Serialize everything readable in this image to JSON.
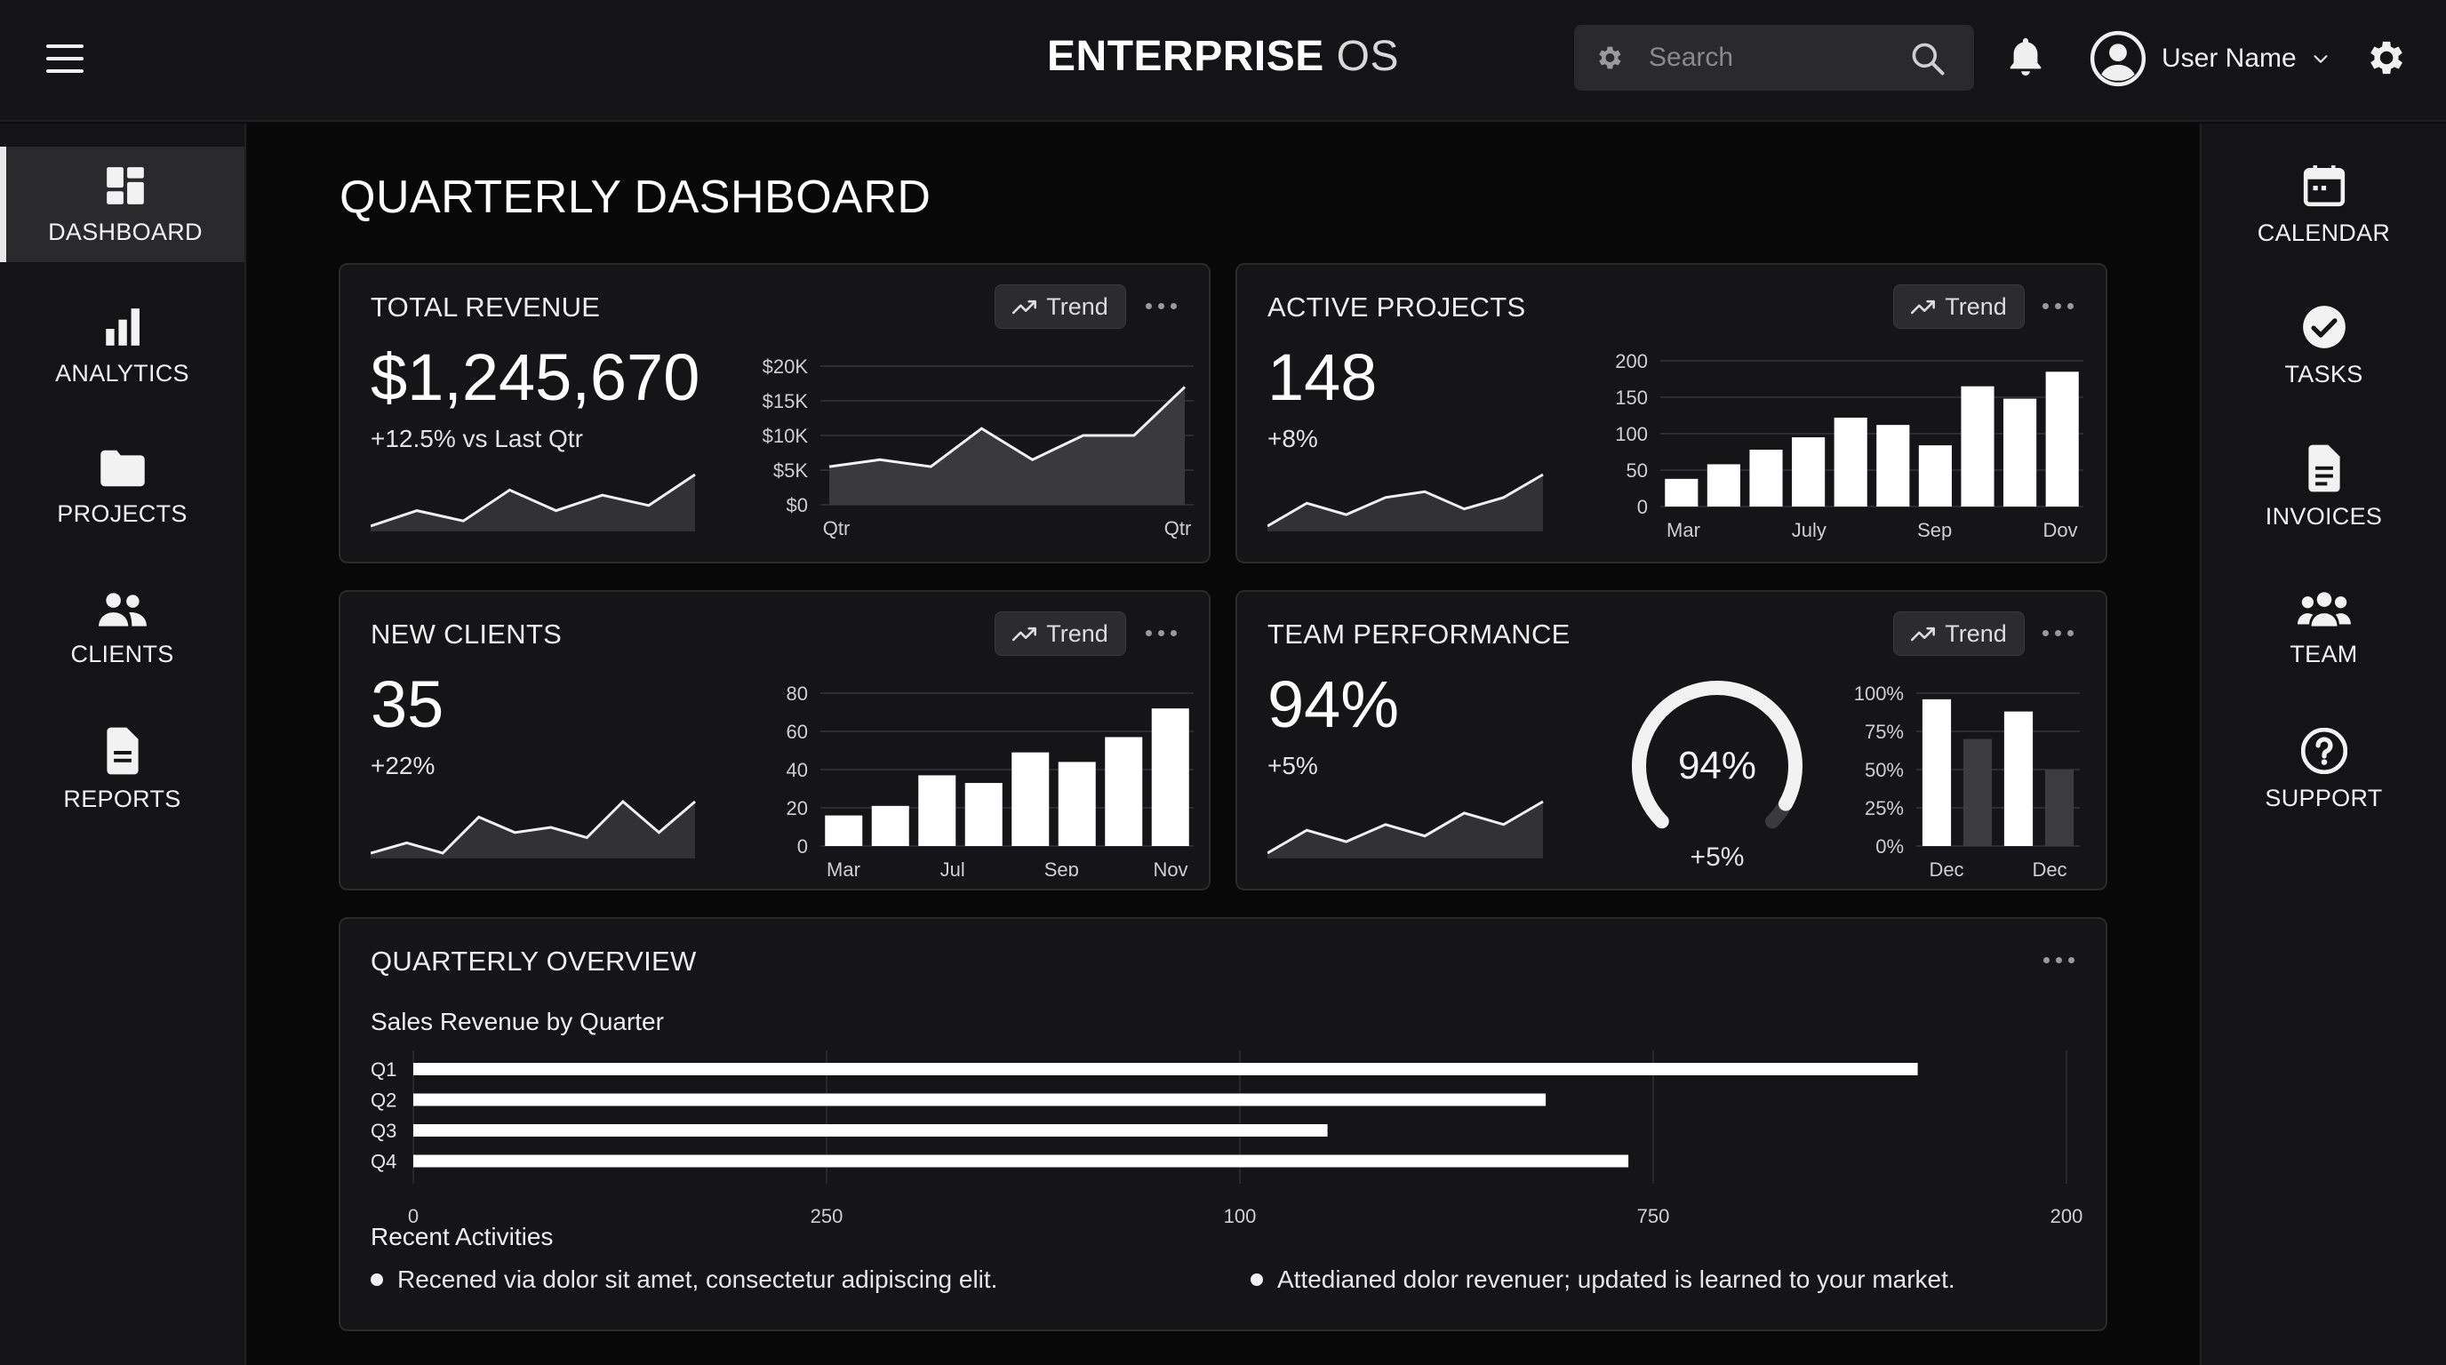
{
  "header": {
    "title_bold": "ENTERPRISE",
    "title_light": "OS",
    "search_placeholder": "Search",
    "user_name": "User Name"
  },
  "sidebar_left": [
    {
      "label": "DASHBOARD",
      "icon": "dashboard-icon",
      "active": true
    },
    {
      "label": "ANALYTICS",
      "icon": "bar-chart-icon"
    },
    {
      "label": "PROJECTS",
      "icon": "folder-icon"
    },
    {
      "label": "CLIENTS",
      "icon": "people-icon"
    },
    {
      "label": "REPORTS",
      "icon": "document-icon"
    }
  ],
  "sidebar_right": [
    {
      "label": "CALENDAR",
      "icon": "calendar-icon"
    },
    {
      "label": "TASKS",
      "icon": "check-circle-icon"
    },
    {
      "label": "INVOICES",
      "icon": "invoice-icon"
    },
    {
      "label": "TEAM",
      "icon": "team-icon"
    },
    {
      "label": "SUPPORT",
      "icon": "help-icon"
    }
  ],
  "page_title": "QUARTERLY DASHBOARD",
  "trend_label": "Trend",
  "cards": {
    "revenue": {
      "title": "TOTAL REVENUE",
      "value": "$1,245,670",
      "delta": "+12.5% vs Last Qtr",
      "sparkline": [
        2,
        5,
        3,
        9,
        5,
        8,
        6,
        12
      ],
      "chart": {
        "type": "area",
        "y_ticks": [
          "$20K",
          "$15K",
          "$10K",
          "$5K",
          "$0"
        ],
        "ylim": [
          0,
          20000
        ],
        "x_ticks": [
          "Qtr",
          "Qtr"
        ],
        "values": [
          5500,
          6500,
          5500,
          11000,
          6500,
          10000,
          10000,
          17000
        ]
      }
    },
    "projects": {
      "title": "ACTIVE PROJECTS",
      "value": "148",
      "delta": "+8%",
      "sparkline": [
        1,
        5,
        3,
        6,
        7,
        4,
        6,
        10
      ],
      "chart": {
        "type": "bar",
        "y_ticks": [
          "200",
          "150",
          "100",
          "50",
          "0"
        ],
        "ylim": [
          0,
          200
        ],
        "x_ticks": [
          "Mar",
          "July",
          "Sep",
          "Dov"
        ],
        "values": [
          38,
          58,
          78,
          95,
          122,
          112,
          84,
          165,
          148,
          185
        ]
      }
    },
    "clients": {
      "title": "NEW CLIENTS",
      "value": "35",
      "delta": "+22%",
      "sparkline": [
        2,
        4,
        2,
        9,
        6,
        7,
        5,
        12,
        6,
        12
      ],
      "chart": {
        "type": "bar",
        "y_ticks": [
          "80",
          "60",
          "40",
          "20",
          "0"
        ],
        "ylim": [
          0,
          80
        ],
        "x_ticks": [
          "Mar",
          "Jul",
          "Sep",
          "Nov"
        ],
        "values": [
          16,
          21,
          37,
          33,
          49,
          44,
          57,
          72
        ]
      }
    },
    "team": {
      "title": "TEAM PERFORMANCE",
      "value": "94%",
      "delta": "+5%",
      "sparkline": [
        1,
        5,
        3,
        6,
        4,
        8,
        6,
        10
      ],
      "gauge": {
        "value": "94%",
        "fraction": 0.94,
        "delta": "+5%"
      },
      "chart": {
        "type": "bar",
        "y_ticks": [
          "100%",
          "75%",
          "50%",
          "25%",
          "0%"
        ],
        "ylim": [
          0,
          100
        ],
        "x_ticks": [
          "Dec",
          "Dec"
        ],
        "values": [
          96,
          70,
          88,
          50
        ]
      }
    }
  },
  "overview": {
    "title": "QUARTERLY OVERVIEW",
    "subtitle": "Sales Revenue by Quarter",
    "chart_data": {
      "type": "bar",
      "orientation": "horizontal",
      "categories": [
        "Q1",
        "Q2",
        "Q3",
        "Q4"
      ],
      "values": [
        0.91,
        0.685,
        0.553,
        0.735
      ],
      "x_ticks": [
        "0",
        "250",
        "100",
        "750",
        "200"
      ]
    },
    "activities_title": "Recent Activities",
    "activities": [
      "Recened via dolor sit amet, consectetur adipiscing elit.",
      "Attedianed dolor revenuer; updated is learned to your market."
    ]
  },
  "colors": {
    "bg": "#080808",
    "panel": "#151517",
    "bar": "#ffffff",
    "accent": "#e8e8e8"
  }
}
